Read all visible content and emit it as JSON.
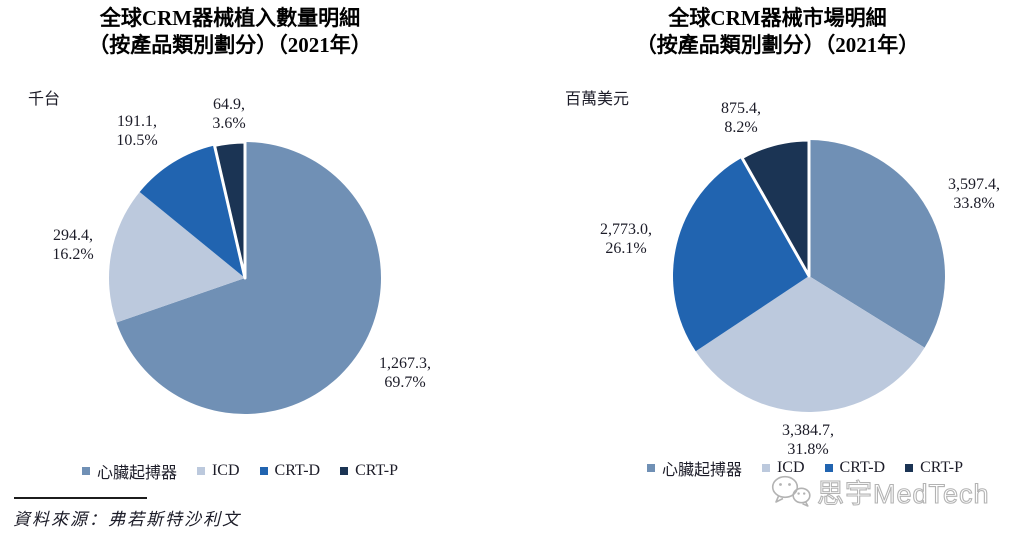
{
  "colors": {
    "slices": [
      "#7090B5",
      "#BCC9DD",
      "#2164B0",
      "#1B3454"
    ],
    "text": "#1C1C28",
    "watermark": "#B3B3B3"
  },
  "source": {
    "label": "資料來源：弗若斯特沙利文"
  },
  "watermark": {
    "brand": "思宇MedTech",
    "icon": "wechat-icon"
  },
  "chart_data": [
    {
      "type": "pie",
      "title": "全球CRM器械植入數量明細（按產品類別劃分）（2021年）",
      "title_line1": "全球CRM器械植入數量明細",
      "title_line2": "（按產品類別劃分）（2021年）",
      "unit": "千台",
      "categories": [
        "心臟起搏器",
        "ICD",
        "CRT-D",
        "CRT-P"
      ],
      "values": [
        1267.3,
        294.4,
        191.1,
        64.9
      ],
      "percentages": [
        69.7,
        16.2,
        10.5,
        3.6
      ],
      "slice_labels": [
        {
          "value": "1,267.3,",
          "pct": "69.7%"
        },
        {
          "value": "294.4,",
          "pct": "16.2%"
        },
        {
          "value": "191.1,",
          "pct": "10.5%"
        },
        {
          "value": "64.9,",
          "pct": "3.6%"
        }
      ],
      "start_angle_deg": 0,
      "direction": "clockwise",
      "legend_position": "bottom"
    },
    {
      "type": "pie",
      "title": "全球CRM器械市場明細（按產品類別劃分）（2021年）",
      "title_line1": "全球CRM器械市場明細",
      "title_line2": "（按產品類別劃分）（2021年）",
      "unit": "百萬美元",
      "categories": [
        "心臟起搏器",
        "ICD",
        "CRT-D",
        "CRT-P"
      ],
      "values": [
        3597.4,
        3384.7,
        2773.0,
        875.4
      ],
      "percentages": [
        33.8,
        31.8,
        26.1,
        8.2
      ],
      "slice_labels": [
        {
          "value": "3,597.4,",
          "pct": "33.8%"
        },
        {
          "value": "3,384.7,",
          "pct": "31.8%"
        },
        {
          "value": "2,773.0,",
          "pct": "26.1%"
        },
        {
          "value": "875.4,",
          "pct": "8.2%"
        }
      ],
      "start_angle_deg": 0,
      "direction": "clockwise",
      "legend_position": "bottom"
    }
  ]
}
